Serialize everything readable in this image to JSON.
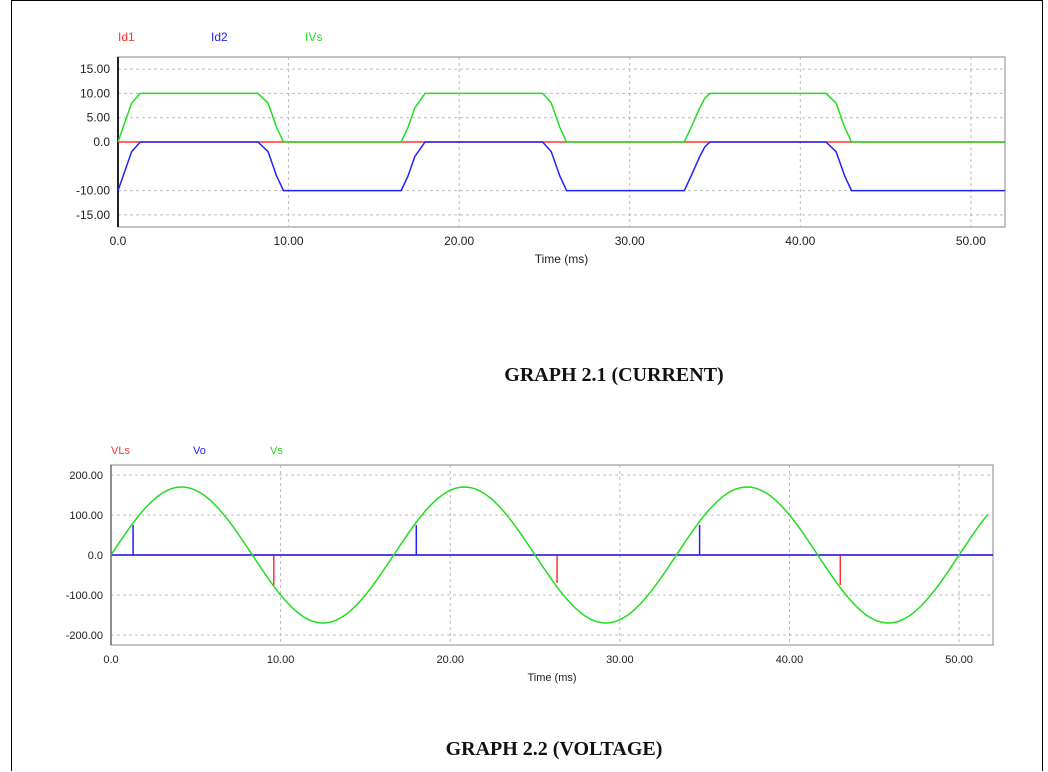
{
  "captions": {
    "graph1": "GRAPH 2.1 (CURRENT)",
    "graph2": "GRAPH 2.2 (VOLTAGE)"
  },
  "chart_data": [
    {
      "type": "line",
      "title": "",
      "xlabel": "Time (ms)",
      "ylabel": "",
      "xlim": [
        0,
        52
      ],
      "ylim": [
        -17.5,
        17.5
      ],
      "xticks": [
        0,
        10,
        20,
        30,
        40,
        50
      ],
      "xtick_labels": [
        "0.0",
        "10.00",
        "20.00",
        "30.00",
        "40.00",
        "50.00"
      ],
      "yticks": [
        15,
        10,
        5,
        0,
        -10,
        -15
      ],
      "ytick_labels": [
        "15.00",
        "10.00",
        "5.00",
        "0.0",
        "-10.00",
        "-15.00"
      ],
      "grid": true,
      "legend_placement": "top",
      "series": [
        {
          "name": "Id1",
          "color": "#ff3333",
          "x": [
            0,
            52
          ],
          "y": [
            0,
            0
          ]
        },
        {
          "name": "Id2",
          "color": "#2222ff",
          "x": [
            0,
            0.3,
            0.8,
            1.3,
            8.2,
            8.8,
            9.3,
            9.7,
            16.6,
            17.0,
            17.4,
            17.8,
            18.0,
            24.9,
            25.4,
            25.9,
            26.3,
            33.2,
            33.6,
            34.1,
            34.4,
            34.7,
            41.5,
            42.1,
            42.6,
            43.0,
            52
          ],
          "y": [
            -10,
            -7,
            -2,
            0,
            0,
            -2,
            -7,
            -10,
            -10,
            -7,
            -3,
            -1,
            0,
            0,
            -2,
            -7,
            -10,
            -10,
            -7,
            -3,
            -1,
            0,
            0,
            -2,
            -7,
            -10,
            -10
          ]
        },
        {
          "name": "IVs",
          "color": "#22dd22",
          "x": [
            0,
            0.3,
            0.8,
            1.3,
            8.2,
            8.8,
            9.3,
            9.7,
            16.6,
            17.0,
            17.4,
            17.8,
            18.0,
            24.9,
            25.4,
            25.9,
            26.3,
            33.2,
            33.6,
            34.1,
            34.4,
            34.7,
            41.5,
            42.1,
            42.6,
            43.0,
            52
          ],
          "y": [
            0,
            3,
            8,
            10,
            10,
            8,
            3,
            0,
            0,
            3,
            7,
            9,
            10,
            10,
            8,
            3,
            0,
            0,
            3,
            7,
            9,
            10,
            10,
            8,
            3,
            0,
            0
          ]
        }
      ]
    },
    {
      "type": "line",
      "title": "",
      "xlabel": "Time (ms)",
      "ylabel": "",
      "xlim": [
        0,
        52
      ],
      "ylim": [
        -225,
        225
      ],
      "xticks": [
        0,
        10,
        20,
        30,
        40,
        50
      ],
      "xtick_labels": [
        "0.0",
        "10.00",
        "20.00",
        "30.00",
        "40.00",
        "50.00"
      ],
      "yticks": [
        200,
        100,
        0,
        -100,
        -200
      ],
      "ytick_labels": [
        "200.00",
        "100.00",
        "0.0",
        "-100.00",
        "-200.00"
      ],
      "grid": true,
      "legend_placement": "top",
      "series": [
        {
          "name": "VLs",
          "color": "#ff3333",
          "x": [
            0,
            9.6,
            9.6,
            9.6,
            26.3,
            26.3,
            26.3,
            43.0,
            43.0,
            43.0,
            52
          ],
          "y": [
            0,
            0,
            -75,
            0,
            0,
            -70,
            0,
            0,
            -75,
            0,
            0
          ]
        },
        {
          "name": "Vo",
          "color": "#2222ff",
          "x": [
            0,
            1.3,
            1.3,
            1.3,
            18.0,
            18.0,
            18.0,
            34.7,
            34.7,
            34.7,
            52
          ],
          "y": [
            0,
            0,
            75,
            0,
            0,
            75,
            0,
            0,
            75,
            0,
            0
          ]
        },
        {
          "name": "Vs",
          "color": "#22dd22",
          "amplitude": 170,
          "period_ms": 16.667,
          "x_start": 0,
          "x_end": 51.7,
          "phase_deg": 0
        }
      ]
    }
  ]
}
